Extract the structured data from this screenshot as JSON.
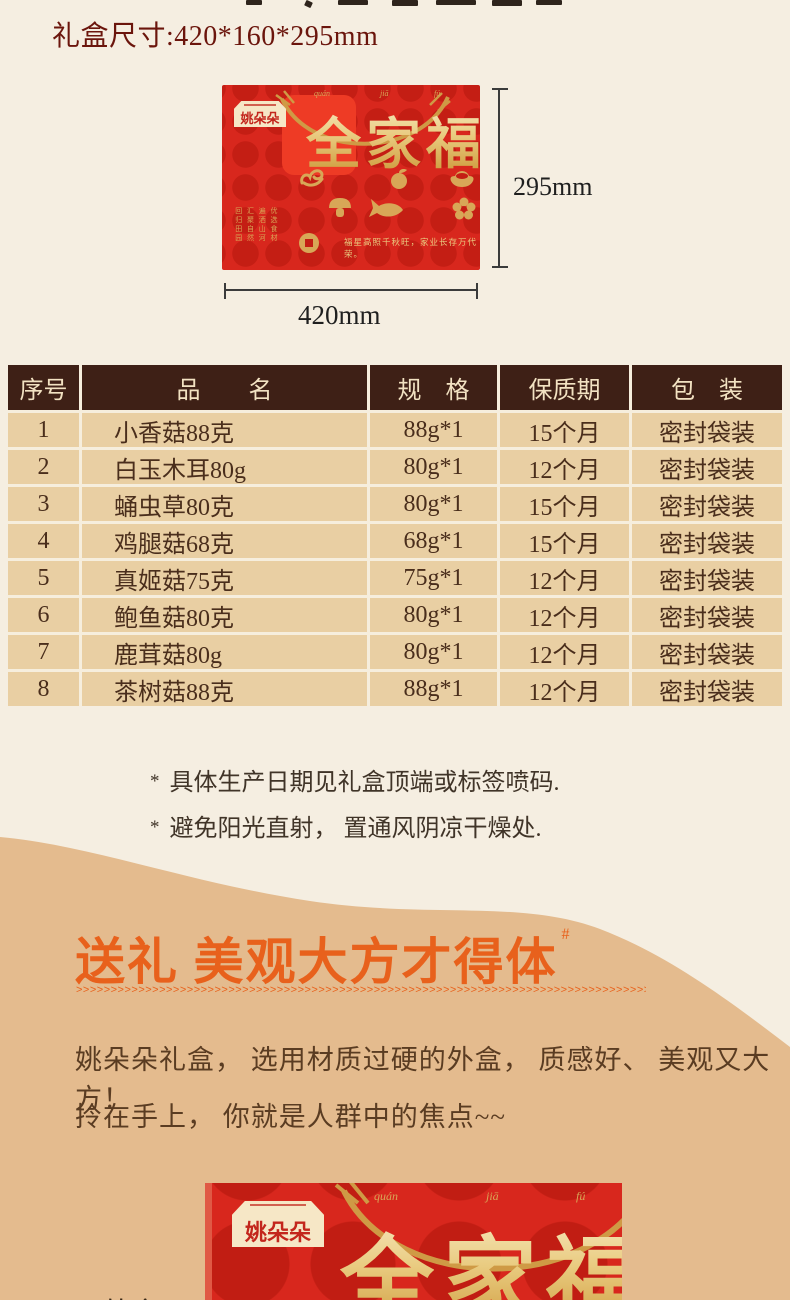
{
  "colors": {
    "cream_bg": "#f5eee1",
    "tan_bg": "#e4bb8e",
    "box_red": "#d8271d",
    "box_red_dark": "#c11d13",
    "gold": "#d8a757",
    "heading_orange": "#e8611c",
    "title_maroon": "#6b150c",
    "table_header_bg": "#3e2016",
    "table_header_text": "#f2e2c2",
    "table_row_bg": "#e9cfa3",
    "table_row_text": "#4a2e1c"
  },
  "size_title": "礼盒尺寸:420*160*295mm",
  "giftbox": {
    "brand": "姚朵朵",
    "pinyin": [
      "quán",
      "jiā",
      "fú"
    ],
    "title_chars": [
      "全",
      "家",
      "福"
    ],
    "side_text_columns": [
      "优选食材",
      "遍洒山河",
      "汇聚自然",
      "回归田园"
    ],
    "tagline": "福星高照千秋旺，家业长存万代荣。",
    "icons": [
      "ruyi-icon",
      "orange-icon",
      "ingot-icon",
      "mushroom-icon",
      "fish-icon",
      "plum-blossom-icon",
      "coin-icon"
    ]
  },
  "dimensions": {
    "height": "295mm",
    "width": "420mm"
  },
  "table": {
    "headers": [
      "序号",
      "品　　名",
      "规　格",
      "保质期",
      "包　装"
    ],
    "rows": [
      [
        "1",
        "小香菇88克",
        "88g*1",
        "15个月",
        "密封袋装"
      ],
      [
        "2",
        "白玉木耳80g",
        "80g*1",
        "12个月",
        "密封袋装"
      ],
      [
        "3",
        "蛹虫草80克",
        "80g*1",
        "15个月",
        "密封袋装"
      ],
      [
        "4",
        "鸡腿菇68克",
        "68g*1",
        "15个月",
        "密封袋装"
      ],
      [
        "5",
        "真姬菇75克",
        "75g*1",
        "12个月",
        "密封袋装"
      ],
      [
        "6",
        "鲍鱼菇80克",
        "80g*1",
        "12个月",
        "密封袋装"
      ],
      [
        "7",
        "鹿茸菇80g",
        "80g*1",
        "12个月",
        "密封袋装"
      ],
      [
        "8",
        "茶树菇88克",
        "88g*1",
        "12个月",
        "密封袋装"
      ]
    ]
  },
  "notes": {
    "star": "*",
    "items": [
      "具体生产日期见礼盒顶端或标签喷码.",
      "避免阳光直射， 置通风阴凉干燥处."
    ]
  },
  "gift_section": {
    "heading": "送礼 美观大方才得体",
    "heading_sup": "#",
    "arrows": ">>>>>>>>>>>>>>>>>>>>>>>>>>>>>>>>>>>>>>>>>>>>>>>>>>>>>>>>>>>>>>>>>>>>>>>>>>>>>>>>>>>>>>>>>>>>>>>>>>>>>>>>>>>>>>>>>>>>",
    "lines": [
      "姚朵朵礼盒， 选用材质过硬的外盒， 质感好、 美观又大方！",
      "拎在手上， 你就是人群中的焦点~~"
    ]
  },
  "bottom_caption": "外盒"
}
